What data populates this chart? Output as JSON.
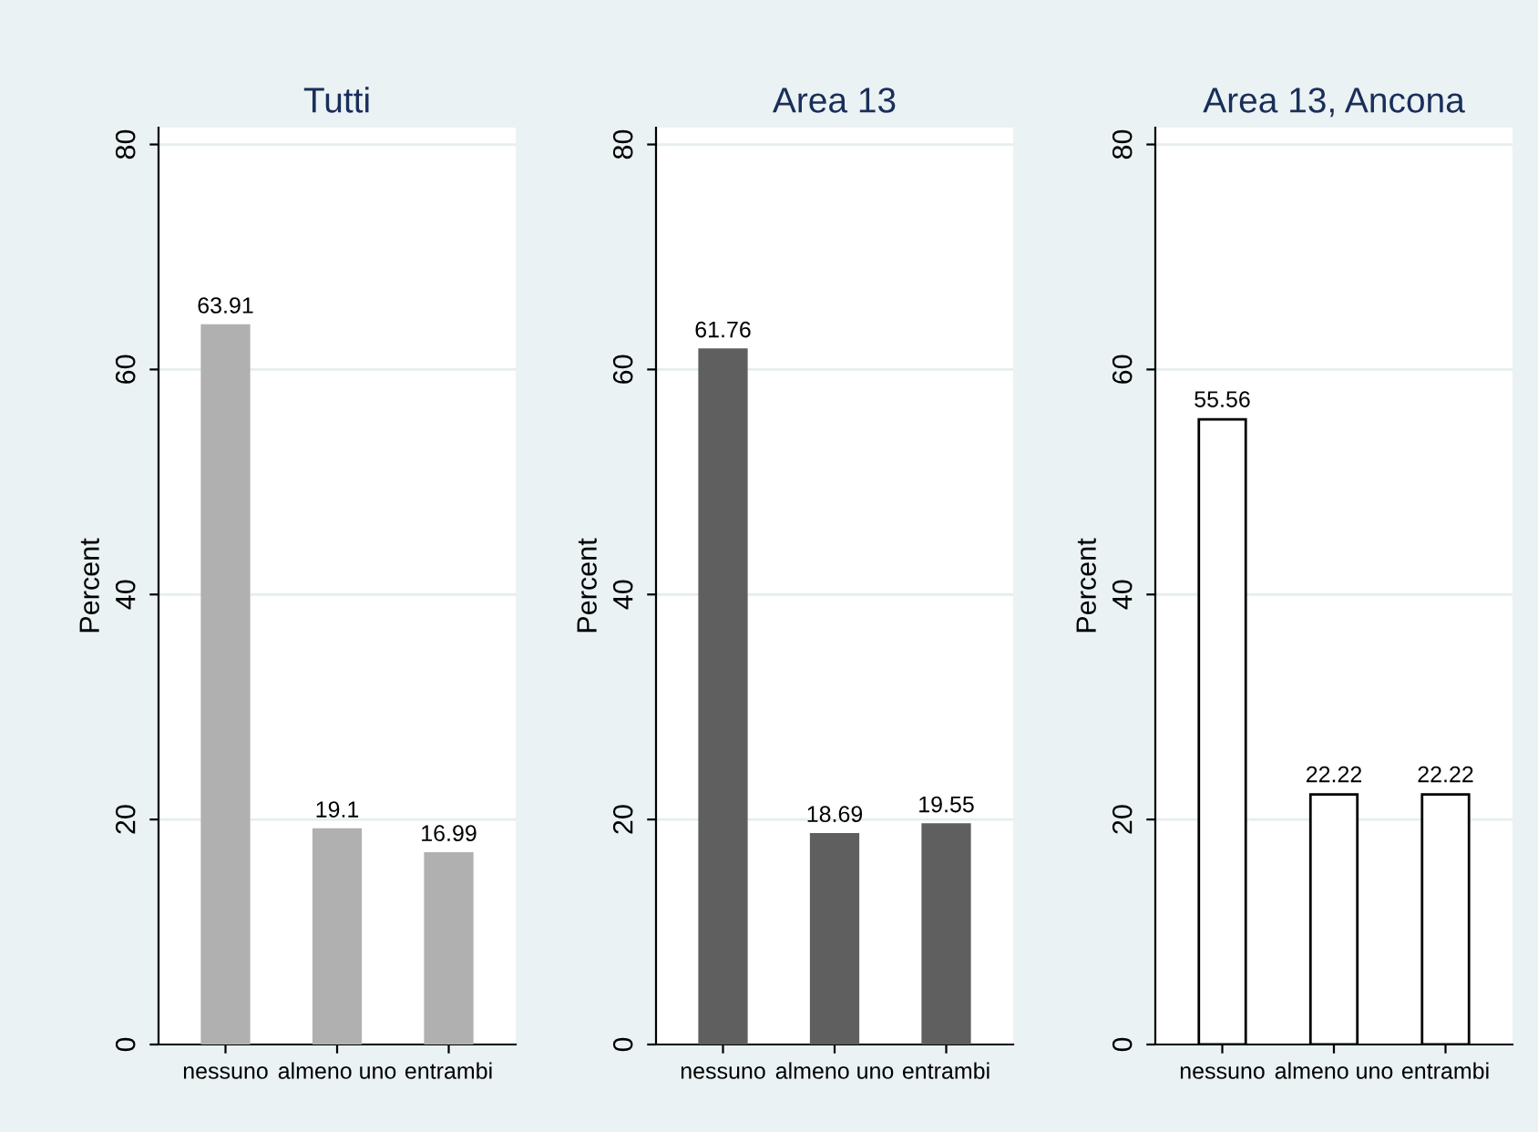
{
  "chart_data": [
    {
      "type": "bar",
      "title": "Tutti",
      "ylabel": "Percent",
      "categories": [
        "nessuno",
        "almeno uno",
        "entrambi"
      ],
      "values": [
        63.91,
        19.1,
        16.99
      ],
      "color": "#b0b0b0",
      "ylim": [
        0,
        81.5
      ],
      "yticks": [
        0,
        20,
        40,
        60,
        80
      ],
      "grid": "y",
      "data_labels": true
    },
    {
      "type": "bar",
      "title": "Area 13",
      "ylabel": "Percent",
      "categories": [
        "nessuno",
        "almeno uno",
        "entrambi"
      ],
      "values": [
        61.76,
        18.69,
        19.55
      ],
      "color": "#5f5f5f",
      "ylim": [
        0,
        81.5
      ],
      "yticks": [
        0,
        20,
        40,
        60,
        80
      ],
      "grid": "y",
      "data_labels": true
    },
    {
      "type": "bar",
      "title": "Area 13, Ancona",
      "ylabel": "Percent",
      "categories": [
        "nessuno",
        "almeno uno",
        "entrambi"
      ],
      "values": [
        55.56,
        22.22,
        22.22
      ],
      "color": "#ffffff",
      "ylim": [
        0,
        81.5
      ],
      "yticks": [
        0,
        20,
        40,
        60,
        80
      ],
      "grid": "y",
      "data_labels": true
    }
  ]
}
